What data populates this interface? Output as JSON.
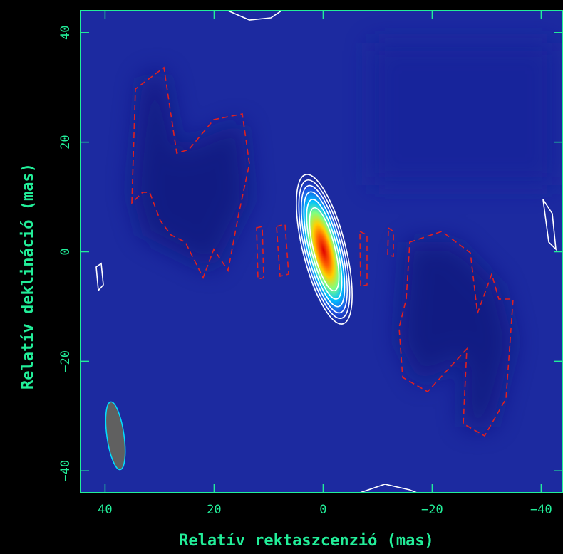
{
  "chart_data": {
    "type": "image",
    "xlabel": "Relatív rektaszcenzió (mas)",
    "ylabel": "Relatív deklináció (mas)",
    "xlim": [
      44.5,
      -44
    ],
    "ylim": [
      -44,
      44
    ],
    "xticks": [
      40,
      20,
      0,
      {
        "value": -20,
        "label": "−20"
      },
      {
        "value": -40,
        "label": "−40"
      }
    ],
    "yticks": [
      {
        "value": -40,
        "label": "−40"
      },
      {
        "value": -20,
        "label": "−20"
      },
      0,
      20,
      40
    ],
    "axis_color": "#22ee99"
  }
}
